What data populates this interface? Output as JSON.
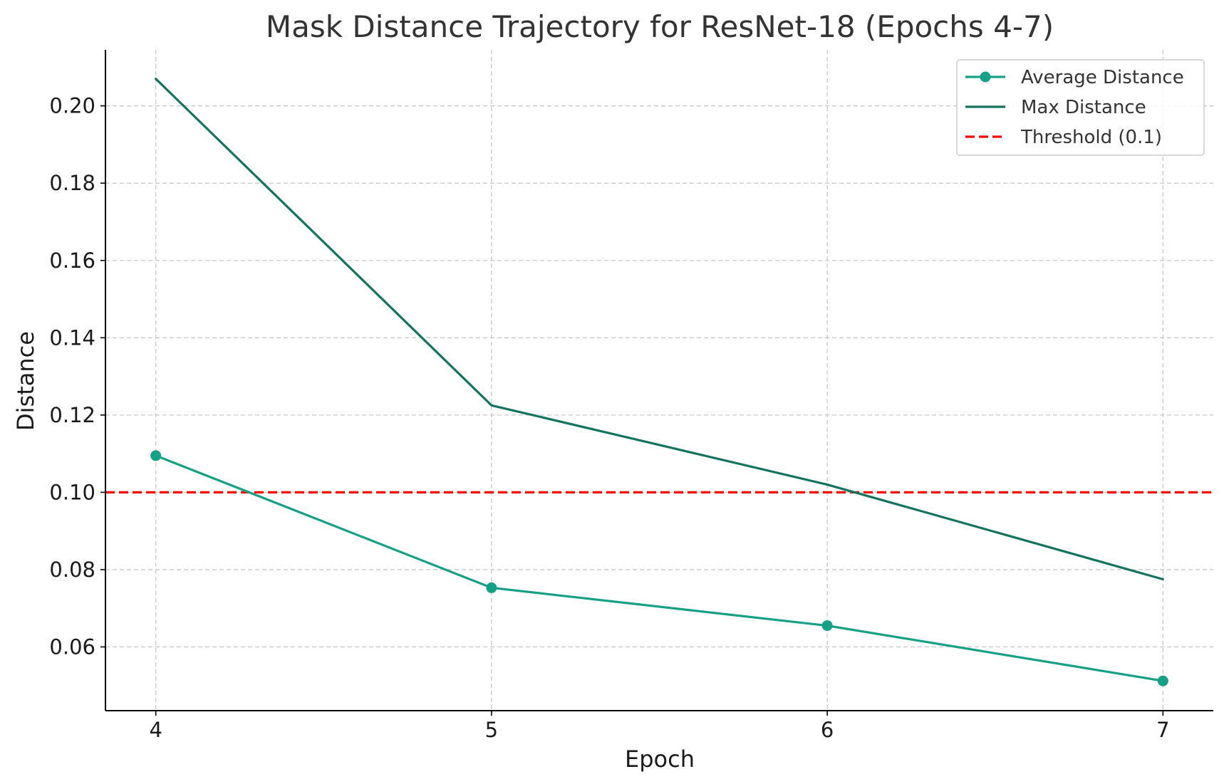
{
  "chart_data": {
    "type": "line",
    "title": "Mask Distance Trajectory for ResNet-18 (Epochs 4-7)",
    "xlabel": "Epoch",
    "ylabel": "Distance",
    "x": [
      4,
      5,
      6,
      7
    ],
    "xticks": [
      "4",
      "5",
      "6",
      "7"
    ],
    "xlim": [
      3.85,
      7.15
    ],
    "yticks": [
      "0.06",
      "0.08",
      "0.10",
      "0.12",
      "0.14",
      "0.16",
      "0.18",
      "0.20"
    ],
    "ytick_values": [
      0.06,
      0.08,
      0.1,
      0.12,
      0.14,
      0.16,
      0.18,
      0.2
    ],
    "ylim": [
      0.0435,
      0.2145
    ],
    "grid": true,
    "legend_position": "top-right",
    "series": [
      {
        "name": "Average Distance",
        "values": [
          0.1095,
          0.0753,
          0.0655,
          0.0512
        ],
        "color": "#16a085",
        "marker": "circle",
        "style": "solid"
      },
      {
        "name": "Max Distance",
        "values": [
          0.207,
          0.1225,
          0.102,
          0.0775
        ],
        "color": "#13735f",
        "marker": "none",
        "style": "solid"
      }
    ],
    "reference_lines": [
      {
        "name": "Threshold (0.1)",
        "y": 0.1,
        "color": "#ff0000",
        "style": "dashed"
      }
    ]
  }
}
